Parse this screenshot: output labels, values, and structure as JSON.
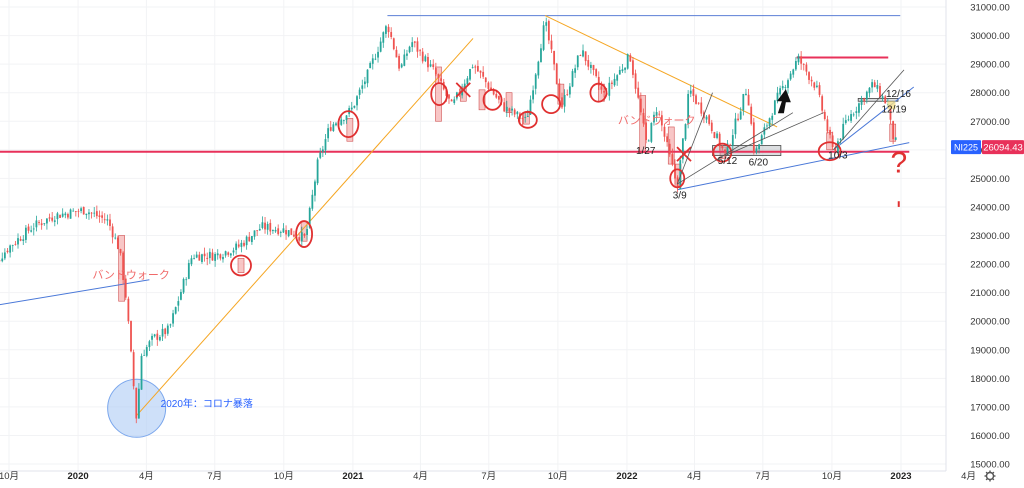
{
  "chart_data": {
    "type": "candlestick",
    "symbol_tag": "NI225",
    "last_price": "26094.43",
    "y_ticks": [
      "31000.00",
      "30000.00",
      "29000.00",
      "28000.00",
      "27000.00",
      "26000.00",
      "25000.00",
      "24000.00",
      "23000.00",
      "22000.00",
      "21000.00",
      "20000.00",
      "19000.00",
      "18000.00",
      "17000.00",
      "16000.00",
      "15000.00"
    ],
    "x_ticks": [
      {
        "label": "10月",
        "date": "2019-10"
      },
      {
        "label": "2020",
        "date": "2020-01",
        "bold": true
      },
      {
        "label": "4月",
        "date": "2020-04"
      },
      {
        "label": "7月",
        "date": "2020-07"
      },
      {
        "label": "10月",
        "date": "2020-10"
      },
      {
        "label": "2021",
        "date": "2021-01",
        "bold": true
      },
      {
        "label": "4月",
        "date": "2021-04"
      },
      {
        "label": "7月",
        "date": "2021-07"
      },
      {
        "label": "10月",
        "date": "2021-10"
      },
      {
        "label": "2022",
        "date": "2022-01",
        "bold": true
      },
      {
        "label": "4月",
        "date": "2022-04"
      },
      {
        "label": "7月",
        "date": "2022-07"
      },
      {
        "label": "10月",
        "date": "2022-10"
      },
      {
        "label": "2023",
        "date": "2023-01",
        "bold": true
      },
      {
        "label": "4月",
        "date": "2023-04"
      }
    ],
    "ylim": [
      15000,
      31000
    ],
    "price_path": [
      [
        "2019-09-01",
        21700
      ],
      [
        "2019-10-01",
        22600
      ],
      [
        "2019-11-01",
        23300
      ],
      [
        "2019-12-01",
        23700
      ],
      [
        "2020-01-10",
        23900
      ],
      [
        "2020-02-10",
        23500
      ],
      [
        "2020-02-25",
        22500
      ],
      [
        "2020-03-05",
        20800
      ],
      [
        "2020-03-19",
        16500
      ],
      [
        "2020-03-25",
        18800
      ],
      [
        "2020-04-10",
        19400
      ],
      [
        "2020-05-01",
        19700
      ],
      [
        "2020-06-01",
        22300
      ],
      [
        "2020-07-01",
        22300
      ],
      [
        "2020-08-01",
        22600
      ],
      [
        "2020-09-01",
        23300
      ],
      [
        "2020-10-01",
        23200
      ],
      [
        "2020-10-30",
        22900
      ],
      [
        "2020-11-15",
        25500
      ],
      [
        "2020-12-01",
        26800
      ],
      [
        "2020-12-30",
        27400
      ],
      [
        "2021-01-20",
        28600
      ],
      [
        "2021-02-16",
        30400
      ],
      [
        "2021-03-05",
        28800
      ],
      [
        "2021-03-20",
        29800
      ],
      [
        "2021-04-20",
        28700
      ],
      [
        "2021-05-13",
        27500
      ],
      [
        "2021-06-10",
        29000
      ],
      [
        "2021-07-20",
        27500
      ],
      [
        "2021-08-20",
        27000
      ],
      [
        "2021-09-14",
        30500
      ],
      [
        "2021-10-06",
        27500
      ],
      [
        "2021-11-01",
        29500
      ],
      [
        "2021-12-01",
        27900
      ],
      [
        "2022-01-05",
        29300
      ],
      [
        "2022-01-27",
        26200
      ],
      [
        "2022-02-10",
        27500
      ],
      [
        "2022-03-09",
        24700
      ],
      [
        "2022-03-25",
        28100
      ],
      [
        "2022-04-20",
        27000
      ],
      [
        "2022-05-12",
        25800
      ],
      [
        "2022-06-10",
        28200
      ],
      [
        "2022-06-20",
        25800
      ],
      [
        "2022-07-20",
        27800
      ],
      [
        "2022-08-17",
        29200
      ],
      [
        "2022-09-10",
        28200
      ],
      [
        "2022-10-03",
        25900
      ],
      [
        "2022-10-20",
        27000
      ],
      [
        "2022-11-25",
        28300
      ],
      [
        "2022-12-16",
        27500
      ],
      [
        "2022-12-19",
        26600
      ],
      [
        "2022-12-28",
        26094
      ]
    ],
    "annotations": [
      {
        "text": "バンドウォーク",
        "date": "2020-01-20",
        "price": 21500
      },
      {
        "text": "バンドウォーク",
        "date": "2021-12-20",
        "price": 26900
      },
      {
        "text": "2020年：コロナ暴落",
        "date": "2020-04-20",
        "price": 17000
      },
      {
        "text": "1/27",
        "date": "2022-01-13",
        "price": 25850
      },
      {
        "text": "3/9",
        "date": "2022-03-03",
        "price": 24300
      },
      {
        "text": "5/12",
        "date": "2022-05-02",
        "price": 25500
      },
      {
        "text": "6/20",
        "date": "2022-06-12",
        "price": 25450
      },
      {
        "text": "10/3",
        "date": "2022-09-26",
        "price": 25700
      },
      {
        "text": "12/16",
        "date": "2022-12-12",
        "price": 27850
      },
      {
        "text": "12/19",
        "date": "2022-12-06",
        "price": 27300
      },
      {
        "text": "?",
        "date": "2022-12-18",
        "price": 25200
      }
    ],
    "hlines": [
      {
        "name": "resistance",
        "price": 30700,
        "from": "2021-02-16",
        "to": "2022-12-31",
        "color": "#5b7fd6"
      },
      {
        "name": "support",
        "price": 25930,
        "from": "2019-09-01",
        "to": "2023-01-12",
        "color": "#e8315a"
      },
      {
        "name": "target",
        "price": 29230,
        "from": "2022-08-15",
        "to": "2022-12-15",
        "color": "#e8315a"
      }
    ],
    "trendlines": [
      {
        "color": "#f5a623",
        "points": [
          [
            "2020-03-19",
            16700
          ],
          [
            "2021-06-10",
            29900
          ]
        ]
      },
      {
        "color": "#f5a623",
        "points": [
          [
            "2021-09-14",
            30700
          ],
          [
            "2022-07-20",
            26800
          ]
        ]
      },
      {
        "color": "#4a78d8",
        "points": [
          [
            "2019-09-01",
            20500
          ],
          [
            "2020-04-05",
            21450
          ]
        ]
      },
      {
        "color": "#4a78d8",
        "points": [
          [
            "2022-03-09",
            24600
          ],
          [
            "2023-01-12",
            26250
          ]
        ]
      },
      {
        "color": "#4a78d8",
        "points": [
          [
            "2022-10-03",
            26000
          ],
          [
            "2023-01-18",
            28200
          ]
        ]
      }
    ],
    "colors": {
      "up": "#26a69a",
      "down": "#ef5350",
      "resistance": "#5b7fd6",
      "support_line": "#e8315a",
      "trend_orange": "#f5a623",
      "trend_blue": "#4a78d8",
      "marker_red": "#e03030",
      "band_pink": "#f4a7a7",
      "crash_circle": "#aecbf5",
      "price_tag_bg": "#e8315a",
      "symbol_tag_bg": "#2962ff"
    }
  }
}
